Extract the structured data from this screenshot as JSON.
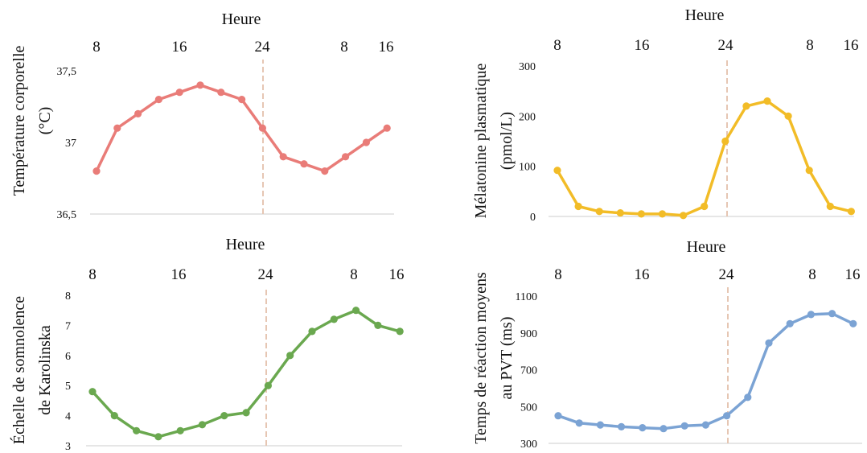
{
  "chart_data": [
    {
      "type": "line",
      "xlabel": "Heure",
      "ylabel_lines": [
        "Température corporelle",
        "(°C)"
      ],
      "x_ticks": [
        "8",
        "16",
        "24",
        "8",
        "16"
      ],
      "y_ticks": [
        "36,5",
        "37",
        "37,5"
      ],
      "ylim": [
        36.5,
        37.5
      ],
      "color": "#E97C78",
      "marker_line": "24",
      "values": [
        36.8,
        37.1,
        37.2,
        37.3,
        37.35,
        37.4,
        37.35,
        37.3,
        37.1,
        36.9,
        36.85,
        36.8,
        36.9,
        37.0,
        37.1
      ]
    },
    {
      "type": "line",
      "xlabel": "Heure",
      "ylabel_lines": [
        "Mélatonine plasmatique",
        "(pmol/L)"
      ],
      "x_ticks": [
        "8",
        "16",
        "24",
        "8",
        "16"
      ],
      "y_ticks": [
        "0",
        "100",
        "200",
        "300"
      ],
      "ylim": [
        0,
        300
      ],
      "color": "#F2BC27",
      "marker_line": "24",
      "values": [
        92,
        20,
        10,
        7,
        5,
        5,
        2,
        20,
        150,
        220,
        230,
        200,
        92,
        20,
        10
      ]
    },
    {
      "type": "line",
      "xlabel": "Heure",
      "ylabel_lines": [
        "Échelle de somnolence",
        "de Karolinska"
      ],
      "x_ticks": [
        "8",
        "16",
        "24",
        "8",
        "16"
      ],
      "y_ticks": [
        "3",
        "4",
        "5",
        "6",
        "7",
        "8"
      ],
      "ylim": [
        3,
        8
      ],
      "color": "#6AA84F",
      "marker_line": "24",
      "values": [
        4.8,
        4.0,
        3.5,
        3.3,
        3.5,
        3.7,
        4.0,
        4.1,
        5.0,
        6.0,
        6.8,
        7.2,
        7.5,
        7.0,
        6.8
      ]
    },
    {
      "type": "line",
      "xlabel": "Heure",
      "ylabel_lines": [
        "Temps de réaction moyens",
        "au PVT (ms)"
      ],
      "x_ticks": [
        "8",
        "16",
        "24",
        "8",
        "16"
      ],
      "y_ticks": [
        "300",
        "500",
        "700",
        "900",
        "1100"
      ],
      "ylim": [
        300,
        1100
      ],
      "color": "#7BA3D4",
      "marker_line": "24",
      "values": [
        450,
        410,
        400,
        390,
        385,
        380,
        395,
        400,
        450,
        550,
        845,
        950,
        1000,
        1005,
        950
      ]
    }
  ],
  "colors": {
    "axis": "#CCCCCC",
    "dashed": "#E6C6B3"
  }
}
